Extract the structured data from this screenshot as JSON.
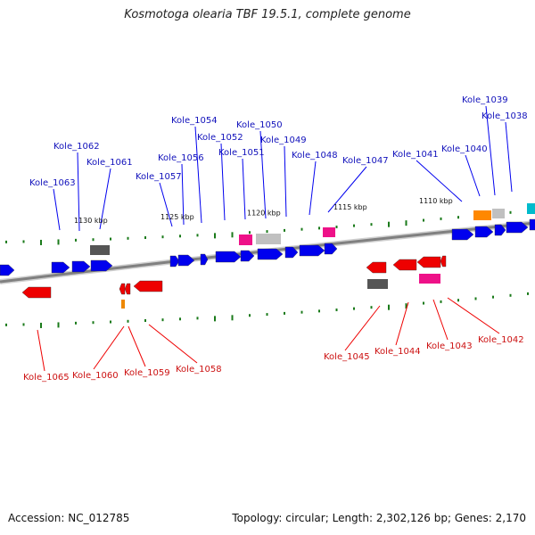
{
  "title": "Kosmotoga olearia TBF 19.5.1, complete genome",
  "footer": {
    "accession_label": "Accession:",
    "accession": "NC_012785",
    "topology_label": "Topology:",
    "topology": "circular",
    "length_label": "Length:",
    "length": "2,302,126 bp",
    "genes_label": "Genes:",
    "genes": "2,170"
  },
  "colors": {
    "forward": "#0000ee",
    "reverse": "#ee0000",
    "forward_label": "#1111bb",
    "reverse_label": "#cc1111",
    "backbone": "#808080",
    "tick": "#1a7a1a",
    "gray_feature": "#555555",
    "light_gray_feature": "#c0c0c0",
    "pink_feature": "#ee1188",
    "orange_feature": "#ff8800",
    "cyan_feature": "#00bbcc"
  },
  "scale_labels": [
    "1130 kbp",
    "1125 kbp",
    "1120 kbp",
    "1115 kbp",
    "1110 kbp"
  ],
  "forward_labels": [
    "Kole_1063",
    "Kole_1062",
    "Kole_1061",
    "Kole_1057",
    "Kole_1056",
    "Kole_1054",
    "Kole_1052",
    "Kole_1051",
    "Kole_1050",
    "Kole_1049",
    "Kole_1048",
    "Kole_1047",
    "Kole_1041",
    "Kole_1040",
    "Kole_1039",
    "Kole_1038"
  ],
  "reverse_labels": [
    "Kole_1065",
    "Kole_1060",
    "Kole_1059",
    "Kole_1058",
    "Kole_1045",
    "Kole_1044",
    "Kole_1043",
    "Kole_1042"
  ]
}
